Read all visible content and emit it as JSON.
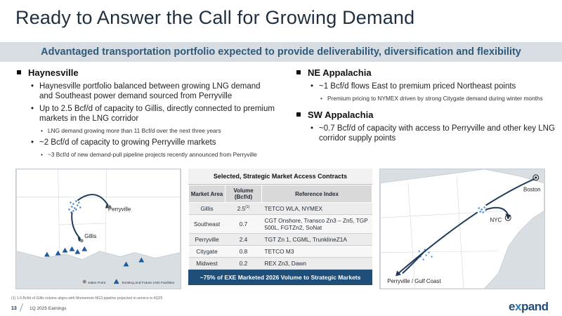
{
  "title": "Ready to Answer the Call for Growing Demand",
  "banner": "Advantaged transportation portfolio expected to provide deliverability, diversification and flexibility",
  "left": {
    "heading": "Haynesville",
    "bullets": [
      "Haynesville portfolio balanced between growing LNG demand and Southeast power demand sourced from Perryville",
      "Up to 2.5 Bcf/d of capacity to Gillis, directly connected to premium markets in the LNG corridor",
      "LNG demand growing more than 11 Bcf/d over the next three years",
      "~2 Bcf/d of capacity to growing Perryville markets",
      "~3 Bcf/d of new demand-pull pipeline projects recently announced from Perryville"
    ]
  },
  "right": {
    "heading1": "NE Appalachia",
    "b1": "~1 Bcf/d flows East to premium priced Northeast points",
    "b1sub": "Premium pricing to NYMEX driven by strong Citygate demand during winter months",
    "heading2": "SW Appalachia",
    "b2": "~0.7 Bcf/d of capacity with access to Perryville and other key LNG corridor supply points"
  },
  "map_left": {
    "label_perryville": "Perryville",
    "label_gillis": "Gillis",
    "legend_sales": "Sales Point",
    "legend_facilities": "Existing and Future LNG Facilities"
  },
  "map_right": {
    "label_boston": "Boston",
    "label_nyc": "NYC",
    "label_perryville_gulf": "Perryville / Gulf Coast"
  },
  "table": {
    "title": "Selected, Strategic Market Access Contracts",
    "headers": [
      "Market Area",
      "Volume (Bcf/d)",
      "Reference Index"
    ],
    "rows": [
      [
        "Gillis",
        "2.5",
        "TETCO WLA, NYMEX"
      ],
      [
        "Southeast",
        "0.7",
        "CGT Onshore, Transco Zn3 – Zn5, TGP 500L, FGTZn2, SoNat"
      ],
      [
        "Perryville",
        "2.4",
        "TGT Zn 1, CGML, TrunklineZ1A"
      ],
      [
        "Citygate",
        "0.8",
        "TETCO M3"
      ],
      [
        "Midwest",
        "0.2",
        "REX Zn3, Dawn"
      ]
    ],
    "gillis_sup": "(1)",
    "footer": "~75% of EXE Marketed 2026 Volume to Strategic Markets"
  },
  "footnote": "(1)   1.6 Bcf/d of Gillis volume aligns with Momentum NG3 pipeline projected in-service in 4Q25",
  "page_number": "13",
  "earnings": "1Q 2025 Earnings",
  "logo_pre": "e",
  "logo_x": "x",
  "logo_post": "pand"
}
